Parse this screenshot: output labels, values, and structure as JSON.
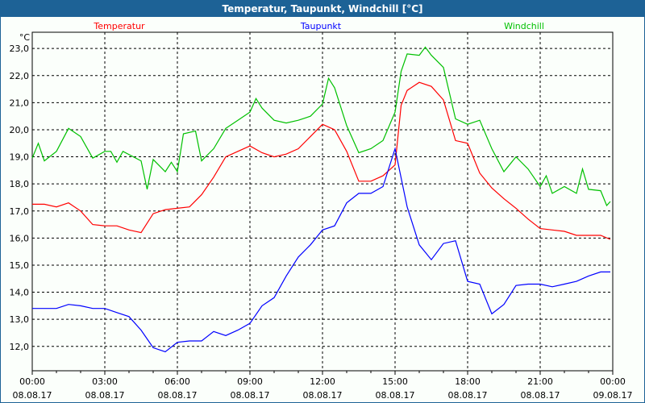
{
  "window": {
    "title": "Temperatur, Taupunkt, Windchill [°C]"
  },
  "chart_data": {
    "type": "line",
    "title": "Temperatur, Taupunkt, Windchill [°C]",
    "ylabel": "°C",
    "ylim": [
      11.1,
      23.6
    ],
    "xlim": [
      0,
      24
    ],
    "grid": true,
    "legend_placement": "top",
    "yticks": [
      12,
      13,
      14,
      15,
      16,
      17,
      18,
      19,
      20,
      21,
      22,
      23
    ],
    "ytick_labels": [
      "12,0",
      "13,0",
      "14,0",
      "15,0",
      "16,0",
      "17,0",
      "18,0",
      "19,0",
      "20,0",
      "21,0",
      "22,0",
      "23,0"
    ],
    "xticks": [
      {
        "h": 0,
        "time": "00:00",
        "date": "08.08.17"
      },
      {
        "h": 3,
        "time": "03:00",
        "date": "08.08.17"
      },
      {
        "h": 6,
        "time": "06:00",
        "date": "08.08.17"
      },
      {
        "h": 9,
        "time": "09:00",
        "date": "08.08.17"
      },
      {
        "h": 12,
        "time": "12:00",
        "date": "08.08.17"
      },
      {
        "h": 15,
        "time": "15:00",
        "date": "08.08.17"
      },
      {
        "h": 18,
        "time": "18:00",
        "date": "08.08.17"
      },
      {
        "h": 21,
        "time": "21:00",
        "date": "08.08.17"
      },
      {
        "h": 24,
        "time": "00:00",
        "date": "09.08.17"
      }
    ],
    "series": [
      {
        "name": "Temperatur",
        "color": "#ff0000",
        "x": [
          0,
          0.5,
          1,
          1.5,
          2,
          2.5,
          3,
          3.5,
          4,
          4.5,
          5,
          5.5,
          6,
          6.5,
          7,
          7.5,
          8,
          8.5,
          9,
          9.5,
          10,
          10.5,
          11,
          11.5,
          12,
          12.5,
          13,
          13.5,
          14,
          14.5,
          15,
          15.25,
          15.5,
          16,
          16.5,
          17,
          17.5,
          18,
          18.5,
          19,
          19.5,
          20,
          20.5,
          21,
          21.5,
          22,
          22.5,
          23,
          23.5,
          23.9
        ],
        "y": [
          17.25,
          17.25,
          17.15,
          17.3,
          17.0,
          16.5,
          16.45,
          16.45,
          16.3,
          16.2,
          16.9,
          17.05,
          17.1,
          17.15,
          17.6,
          18.25,
          19.0,
          19.2,
          19.4,
          19.15,
          19.0,
          19.1,
          19.3,
          19.75,
          20.2,
          20.0,
          19.2,
          18.1,
          18.1,
          18.3,
          18.7,
          20.9,
          21.45,
          21.75,
          21.6,
          21.1,
          19.6,
          19.5,
          18.4,
          17.85,
          17.45,
          17.1,
          16.7,
          16.35,
          16.3,
          16.25,
          16.1,
          16.1,
          16.1,
          15.95
        ]
      },
      {
        "name": "Taupunkt",
        "color": "#0000ff",
        "x": [
          0,
          0.5,
          1,
          1.5,
          2,
          2.5,
          3,
          3.5,
          4,
          4.5,
          5,
          5.5,
          6,
          6.5,
          7,
          7.5,
          8,
          8.5,
          9,
          9.5,
          10,
          10.5,
          11,
          11.5,
          12,
          12.5,
          13,
          13.5,
          14,
          14.5,
          15,
          15.5,
          16,
          16.5,
          17,
          17.5,
          18,
          18.5,
          19,
          19.5,
          20,
          20.5,
          21,
          21.5,
          22,
          22.5,
          23,
          23.5,
          23.9
        ],
        "y": [
          13.4,
          13.4,
          13.4,
          13.55,
          13.5,
          13.4,
          13.4,
          13.25,
          13.1,
          12.6,
          11.95,
          11.8,
          12.15,
          12.2,
          12.2,
          12.55,
          12.4,
          12.6,
          12.85,
          13.5,
          13.8,
          14.6,
          15.3,
          15.75,
          16.3,
          16.45,
          17.3,
          17.65,
          17.65,
          17.9,
          19.3,
          17.15,
          15.75,
          15.2,
          15.8,
          15.9,
          14.4,
          14.3,
          13.2,
          13.55,
          14.25,
          14.3,
          14.3,
          14.2,
          14.3,
          14.4,
          14.6,
          14.75,
          14.75
        ]
      },
      {
        "name": "Windchill",
        "color": "#00c000",
        "x": [
          0,
          0.25,
          0.5,
          1,
          1.5,
          2,
          2.5,
          3,
          3.25,
          3.5,
          3.75,
          4.5,
          4.75,
          5,
          5.5,
          5.75,
          6,
          6.25,
          6.75,
          7,
          7.5,
          8,
          8.5,
          9,
          9.25,
          9.5,
          10,
          10.5,
          11,
          11.5,
          12,
          12.25,
          12.5,
          13,
          13.5,
          14,
          14.5,
          15,
          15.25,
          15.5,
          16,
          16.25,
          16.5,
          17,
          17.5,
          18,
          18.5,
          19,
          19.5,
          20,
          20.5,
          21,
          21.25,
          21.5,
          22,
          22.5,
          22.75,
          23,
          23.5,
          23.75,
          23.9
        ],
        "y": [
          18.95,
          19.5,
          18.85,
          19.2,
          20.05,
          19.75,
          18.95,
          19.2,
          19.2,
          18.8,
          19.2,
          18.85,
          17.8,
          18.9,
          18.45,
          18.8,
          18.45,
          19.85,
          19.95,
          18.85,
          19.3,
          20.05,
          20.35,
          20.65,
          21.15,
          20.8,
          20.35,
          20.25,
          20.35,
          20.5,
          20.95,
          21.9,
          21.55,
          20.15,
          19.15,
          19.3,
          19.6,
          20.65,
          22.15,
          22.8,
          22.75,
          23.05,
          22.75,
          22.3,
          20.4,
          20.2,
          20.35,
          19.3,
          18.45,
          19.0,
          18.55,
          17.9,
          18.3,
          17.65,
          17.9,
          17.65,
          18.55,
          17.8,
          17.75,
          17.2,
          17.35
        ]
      }
    ]
  }
}
